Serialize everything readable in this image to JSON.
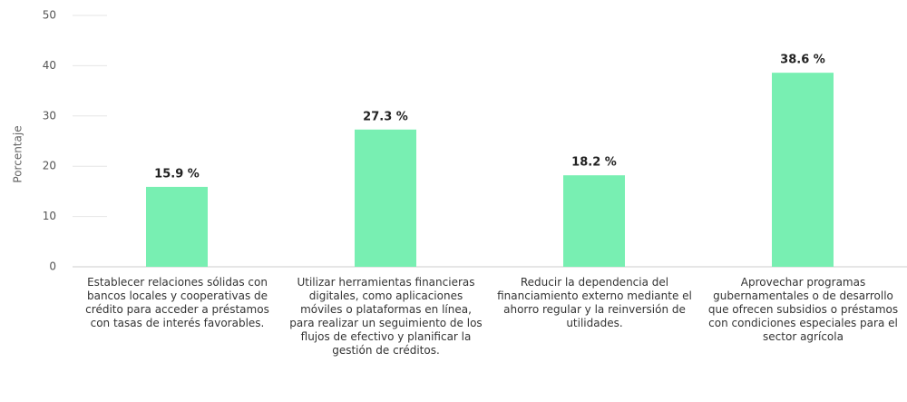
{
  "chart_data": {
    "type": "bar",
    "y_label": "Porcentaje",
    "categories": [
      "Establecer relaciones sólidas con bancos locales y cooperativas de crédito para acceder a préstamos con tasas de interés favorables.",
      "Utilizar herramientas financieras digitales, como aplicaciones móviles o plataformas en línea, para realizar un seguimiento de los flujos de efectivo y planificar la gestión de créditos.",
      "Reducir la dependencia del financiamiento externo mediante el ahorro regular y la reinversión de utilidades.",
      "Aprovechar programas gubernamentales o de desarrollo que ofrecen subsidios o préstamos con condiciones especiales para el sector agrícola"
    ],
    "values": [
      15.9,
      27.3,
      18.2,
      38.6
    ],
    "value_labels": [
      "15.9 %",
      "27.3 %",
      "18.2 %",
      "38.6 %"
    ],
    "color": "#78efb2",
    "ylim": [
      0,
      50
    ],
    "yticks": [
      0,
      10,
      20,
      30,
      40,
      50
    ],
    "grid": true
  }
}
